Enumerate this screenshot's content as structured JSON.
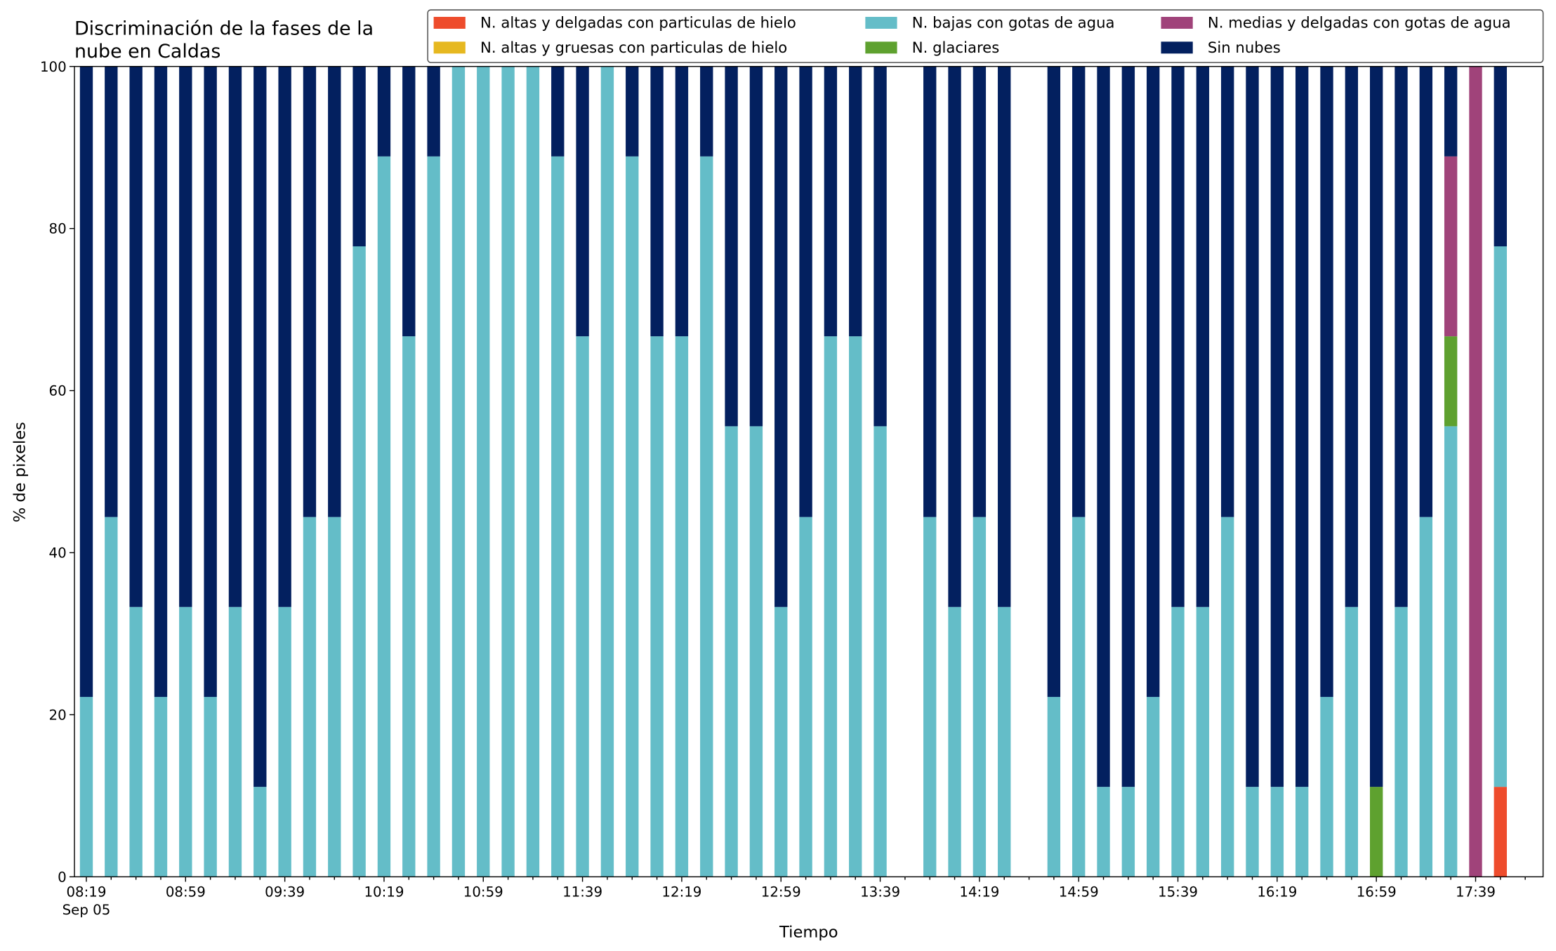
{
  "chart_data": {
    "type": "bar",
    "stacked": true,
    "title": [
      "Discriminación de la fases de la",
      "nube en Caldas"
    ],
    "xlabel": "Tiempo",
    "ylabel": "% de pixeles",
    "date_label": "Sep 05",
    "categories": [
      "08:19",
      null,
      null,
      null,
      "08:59",
      null,
      null,
      null,
      "09:39",
      null,
      null,
      null,
      "10:19",
      null,
      null,
      null,
      "10:59",
      null,
      null,
      null,
      "11:39",
      null,
      null,
      null,
      "12:19",
      null,
      null,
      null,
      "12:59",
      null,
      null,
      null,
      "13:39",
      null,
      null,
      null,
      "14:19",
      null,
      null,
      null,
      "14:59",
      null,
      null,
      null,
      "15:39",
      null,
      null,
      null,
      "16:19",
      null,
      null,
      null,
      "16:59",
      null,
      null,
      null,
      "17:39",
      null
    ],
    "ylim": [
      0,
      100
    ],
    "yticks": [
      0,
      20,
      40,
      60,
      80,
      100
    ],
    "series": [
      {
        "name": "N. altas y delgadas con particulas de hielo",
        "color": "#ee4c2c",
        "values": [
          0,
          0,
          0,
          0,
          0,
          0,
          0,
          0,
          0,
          0,
          0,
          0,
          0,
          0,
          0,
          0,
          0,
          0,
          0,
          0,
          0,
          0,
          0,
          0,
          0,
          0,
          0,
          0,
          0,
          0,
          0,
          0,
          0,
          null,
          0,
          0,
          0,
          0,
          null,
          0,
          0,
          0,
          0,
          0,
          0,
          0,
          0,
          0,
          0,
          0,
          0,
          0,
          0,
          0,
          0,
          0,
          0,
          11.1
        ]
      },
      {
        "name": "N. altas y gruesas con particulas de hielo",
        "color": "#e6b820",
        "values": [
          0,
          0,
          0,
          0,
          0,
          0,
          0,
          0,
          0,
          0,
          0,
          0,
          0,
          0,
          0,
          0,
          0,
          0,
          0,
          0,
          0,
          0,
          0,
          0,
          0,
          0,
          0,
          0,
          0,
          0,
          0,
          0,
          0,
          null,
          0,
          0,
          0,
          0,
          null,
          0,
          0,
          0,
          0,
          0,
          0,
          0,
          0,
          0,
          0,
          0,
          0,
          0,
          0,
          0,
          0,
          0,
          0,
          0
        ]
      },
      {
        "name": "N. bajas con gotas de agua",
        "color": "#64bdc8",
        "values": [
          22.2,
          44.4,
          33.3,
          22.2,
          33.3,
          22.2,
          33.3,
          11.1,
          33.3,
          44.4,
          44.4,
          77.8,
          88.9,
          66.7,
          88.9,
          100,
          100,
          100,
          100,
          88.9,
          66.7,
          100,
          88.9,
          66.7,
          66.7,
          88.9,
          55.6,
          55.6,
          33.3,
          44.4,
          66.7,
          66.7,
          55.6,
          null,
          44.4,
          33.3,
          44.4,
          33.3,
          null,
          22.2,
          44.4,
          11.1,
          11.1,
          22.2,
          33.3,
          33.3,
          44.4,
          11.1,
          11.1,
          11.1,
          22.2,
          33.3,
          0,
          33.3,
          44.4,
          55.6,
          0,
          66.7
        ]
      },
      {
        "name": "N. glaciares",
        "color": "#5ea12f",
        "values": [
          0,
          0,
          0,
          0,
          0,
          0,
          0,
          0,
          0,
          0,
          0,
          0,
          0,
          0,
          0,
          0,
          0,
          0,
          0,
          0,
          0,
          0,
          0,
          0,
          0,
          0,
          0,
          0,
          0,
          0,
          0,
          0,
          0,
          null,
          0,
          0,
          0,
          0,
          null,
          0,
          0,
          0,
          0,
          0,
          0,
          0,
          0,
          0,
          0,
          0,
          0,
          0,
          11.1,
          0,
          0,
          11.1,
          0,
          0
        ]
      },
      {
        "name": "N. medias y delgadas con gotas de agua",
        "color": "#a0437a",
        "values": [
          0,
          0,
          0,
          0,
          0,
          0,
          0,
          0,
          0,
          0,
          0,
          0,
          0,
          0,
          0,
          0,
          0,
          0,
          0,
          0,
          0,
          0,
          0,
          0,
          0,
          0,
          0,
          0,
          0,
          0,
          0,
          0,
          0,
          null,
          0,
          0,
          0,
          0,
          null,
          0,
          0,
          0,
          0,
          0,
          0,
          0,
          0,
          0,
          0,
          0,
          0,
          0,
          0,
          0,
          0,
          22.2,
          100,
          0
        ]
      },
      {
        "name": "Sin nubes",
        "color": "#03205f",
        "values": [
          77.8,
          55.6,
          66.7,
          77.8,
          66.7,
          77.8,
          66.7,
          88.9,
          66.7,
          55.6,
          55.6,
          22.2,
          11.1,
          33.3,
          11.1,
          0,
          0,
          0,
          0,
          11.1,
          33.3,
          0,
          11.1,
          33.3,
          33.3,
          11.1,
          44.4,
          44.4,
          66.7,
          55.6,
          33.3,
          33.3,
          44.4,
          null,
          55.6,
          66.7,
          55.6,
          66.7,
          null,
          77.8,
          55.6,
          88.9,
          88.9,
          77.8,
          66.7,
          66.7,
          55.6,
          88.9,
          88.9,
          88.9,
          77.8,
          66.7,
          88.9,
          66.7,
          55.6,
          11.1,
          0,
          22.2
        ]
      }
    ]
  }
}
